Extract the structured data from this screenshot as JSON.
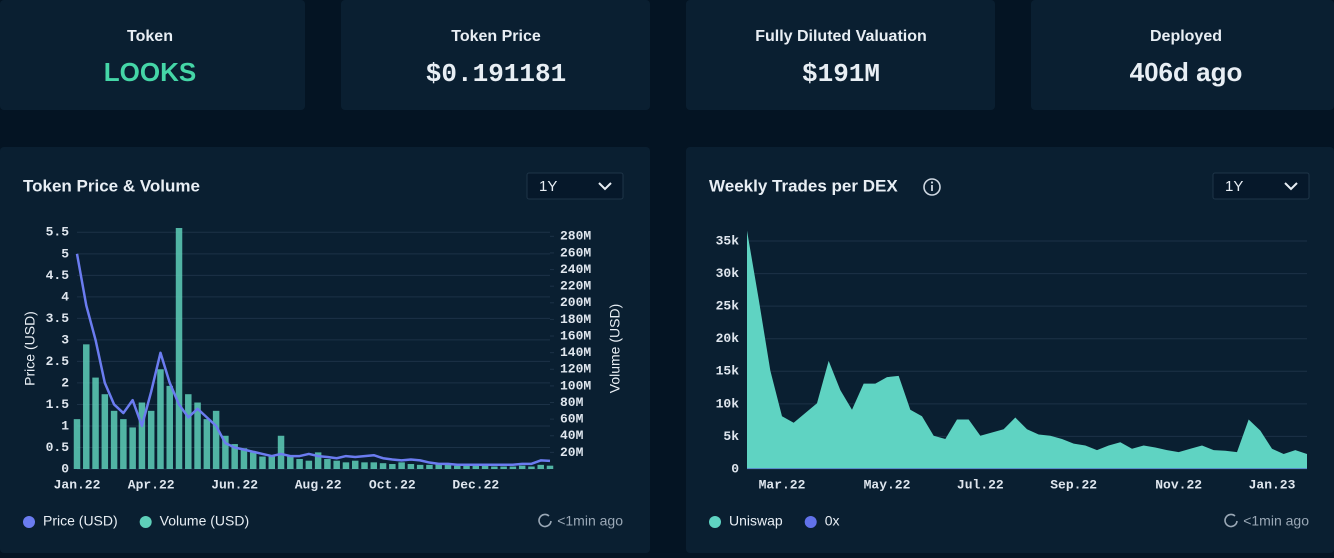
{
  "cards": [
    {
      "label": "Token",
      "value": "LOOKS"
    },
    {
      "label": "Token Price",
      "value": "$0.191181"
    },
    {
      "label": "Fully Diluted Valuation",
      "value": "$191M"
    },
    {
      "label": "Deployed",
      "value": "406d ago"
    }
  ],
  "chart_data": [
    {
      "type": "combo",
      "title": "Token Price & Volume",
      "range": "1Y",
      "footer": "<1min ago",
      "ylabel": "Price (USD)",
      "y2label": "Volume (USD)",
      "categories": [
        "Jan.22",
        null,
        null,
        null,
        null,
        null,
        null,
        null,
        "Apr.22",
        null,
        null,
        null,
        null,
        null,
        null,
        null,
        null,
        "Jun.22",
        null,
        null,
        null,
        null,
        null,
        null,
        null,
        null,
        "Aug.22",
        null,
        null,
        null,
        null,
        null,
        null,
        null,
        "Oct.22",
        null,
        null,
        null,
        null,
        null,
        null,
        null,
        null,
        "Dec.22",
        null,
        null,
        null,
        null,
        null,
        null,
        null,
        null
      ],
      "ylim": [
        0,
        5.6
      ],
      "yticks": [
        0,
        0.5,
        1,
        1.5,
        2,
        2.5,
        3,
        3.5,
        4,
        4.5,
        5,
        5.5
      ],
      "y2lim": [
        0,
        290
      ],
      "y2ticks": [
        {
          "value": 20,
          "label": "20M"
        },
        {
          "value": 40,
          "label": "40M"
        },
        {
          "value": 60,
          "label": "60M"
        },
        {
          "value": 80,
          "label": "80M"
        },
        {
          "value": 100,
          "label": "100M"
        },
        {
          "value": 120,
          "label": "120M"
        },
        {
          "value": 140,
          "label": "140M"
        },
        {
          "value": 160,
          "label": "160M"
        },
        {
          "value": 180,
          "label": "180M"
        },
        {
          "value": 200,
          "label": "200M"
        },
        {
          "value": 220,
          "label": "220M"
        },
        {
          "value": 240,
          "label": "240M"
        },
        {
          "value": 260,
          "label": "260M"
        },
        {
          "value": 280,
          "label": "280M"
        }
      ],
      "grid": true,
      "series": [
        {
          "name": "Volume (USD)",
          "type": "bar",
          "axis": "y2",
          "color": "#5ecfb9",
          "values": [
            60,
            150,
            110,
            90,
            70,
            60,
            50,
            80,
            70,
            120,
            100,
            290,
            90,
            80,
            60,
            70,
            40,
            30,
            25,
            20,
            15,
            15,
            40,
            15,
            12,
            10,
            20,
            12,
            10,
            8,
            10,
            8,
            8,
            7,
            6,
            8,
            6,
            5,
            5,
            6,
            5,
            4,
            4,
            5,
            4,
            3,
            3,
            3,
            4,
            3,
            5,
            4
          ]
        },
        {
          "name": "Price (USD)",
          "type": "line",
          "color": "#6b7cf0",
          "values": [
            5.0,
            3.8,
            3.0,
            2.0,
            1.5,
            1.3,
            1.6,
            1.0,
            1.8,
            2.7,
            2.0,
            1.5,
            1.2,
            1.4,
            1.2,
            1.0,
            0.6,
            0.5,
            0.45,
            0.4,
            0.35,
            0.3,
            0.35,
            0.3,
            0.3,
            0.35,
            0.3,
            0.28,
            0.25,
            0.3,
            0.28,
            0.3,
            0.32,
            0.25,
            0.22,
            0.2,
            0.22,
            0.2,
            0.15,
            0.12,
            0.12,
            0.1,
            0.1,
            0.1,
            0.1,
            0.1,
            0.1,
            0.1,
            0.12,
            0.12,
            0.2,
            0.19
          ]
        }
      ]
    },
    {
      "type": "area",
      "title": "Weekly Trades per DEX",
      "range": "1Y",
      "footer": "<1min ago",
      "categories": [
        null,
        null,
        null,
        "Mar.22",
        null,
        null,
        null,
        null,
        null,
        null,
        null,
        null,
        "May.22",
        null,
        null,
        null,
        null,
        null,
        null,
        null,
        "Jul.22",
        null,
        null,
        null,
        null,
        null,
        null,
        null,
        "Sep.22",
        null,
        null,
        null,
        null,
        null,
        null,
        null,
        null,
        "Nov.22",
        null,
        null,
        null,
        null,
        null,
        null,
        null,
        "Jan.23",
        null,
        null,
        null
      ],
      "ylim": [
        0,
        37000
      ],
      "yticks": [
        0,
        {
          "value": 5000,
          "label": "5k"
        },
        {
          "value": 10000,
          "label": "10k"
        },
        {
          "value": 15000,
          "label": "15k"
        },
        {
          "value": 20000,
          "label": "20k"
        },
        {
          "value": 25000,
          "label": "25k"
        },
        {
          "value": 30000,
          "label": "30k"
        },
        {
          "value": 35000,
          "label": "35k"
        }
      ],
      "grid": true,
      "stacked": true,
      "series": [
        {
          "name": "0x",
          "color": "#6272ea",
          "values": [
            100,
            100,
            100,
            100,
            100,
            100,
            100,
            100,
            100,
            100,
            100,
            100,
            100,
            100,
            100,
            100,
            100,
            100,
            100,
            100,
            100,
            100,
            100,
            100,
            100,
            100,
            100,
            100,
            100,
            100,
            100,
            100,
            100,
            100,
            100,
            100,
            100,
            100,
            100,
            100,
            100,
            100,
            100,
            100,
            100,
            100,
            100,
            100,
            100
          ]
        },
        {
          "name": "Uniswap",
          "color": "#5fd3c2",
          "values": [
            36500,
            26000,
            15000,
            8000,
            7000,
            8500,
            10000,
            16500,
            12000,
            9000,
            13000,
            13000,
            14000,
            14200,
            9000,
            8000,
            5000,
            4500,
            7500,
            7500,
            5000,
            5500,
            6000,
            7800,
            6000,
            5200,
            5000,
            4500,
            3800,
            3500,
            2800,
            3500,
            4000,
            3000,
            3500,
            3200,
            2800,
            2500,
            3000,
            3500,
            2800,
            2700,
            2500,
            7500,
            5800,
            3000,
            2200,
            2800,
            2200
          ]
        }
      ]
    }
  ]
}
